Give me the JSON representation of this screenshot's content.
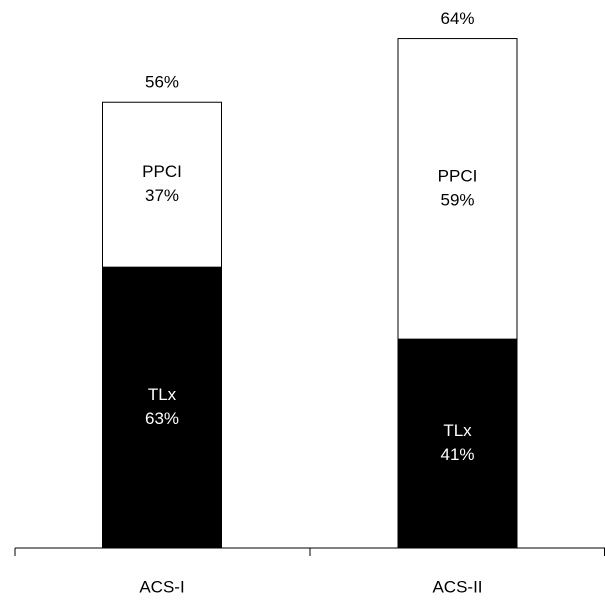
{
  "chart_data": {
    "type": "bar",
    "categories": [
      "ACS-I",
      "ACS-II"
    ],
    "totals": [
      56,
      64
    ],
    "total_labels": [
      "56%",
      "64%"
    ],
    "series": [
      {
        "name": "TLx",
        "color": "#000000",
        "values": [
          63,
          41
        ],
        "value_labels": [
          "63%",
          "41%"
        ]
      },
      {
        "name": "PPCI",
        "color": "#ffffff",
        "values": [
          37,
          59
        ],
        "value_labels": [
          "37%",
          "59%"
        ]
      }
    ]
  }
}
